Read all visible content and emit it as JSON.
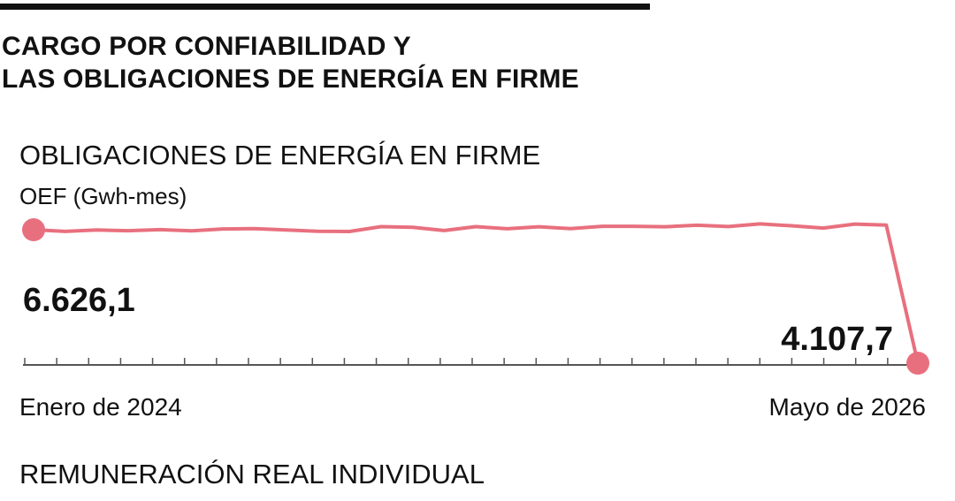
{
  "header": {
    "title_line1": "CARGO POR CONFIABILIDAD Y",
    "title_line2": "LAS OBLIGACIONES DE ENERGÍA EN FIRME"
  },
  "chart_data": {
    "type": "line",
    "title": "OBLIGACIONES DE ENERGÍA EN FIRME",
    "ylabel": "OEF (Gwh-mes)",
    "series": [
      {
        "values": [
          6626.1,
          6595,
          6622,
          6608,
          6628,
          6606,
          6641,
          6646,
          6621,
          6599,
          6593,
          6685,
          6674,
          6611,
          6685,
          6645,
          6683,
          6647,
          6691,
          6692,
          6683,
          6711,
          6686,
          6737,
          6702,
          6659,
          6734,
          6714,
          4107.7
        ]
      }
    ],
    "ylim": [
      4107.7,
      6760
    ],
    "x_start_label": "Enero de 2024",
    "x_end_label": "Mayo de 2026",
    "first_label": "6.626,1",
    "last_label": "4.107,7",
    "line_color": "#e8707e",
    "axis_color": "#555555",
    "grid": false
  },
  "next_section": {
    "title": "REMUNERACIÓN REAL INDIVIDUAL"
  }
}
